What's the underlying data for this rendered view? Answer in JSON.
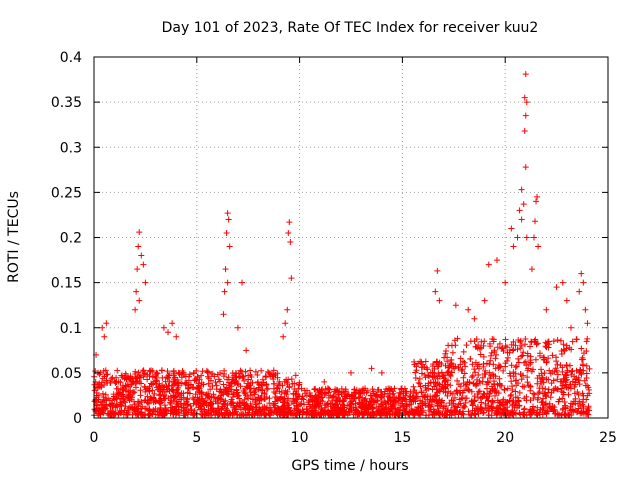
{
  "chart_data": {
    "type": "scatter",
    "title": "Day 101 of 2023, Rate Of TEC Index for receiver kuu2",
    "xlabel": "GPS time / hours",
    "ylabel": "ROTI / TECUs",
    "xlim": [
      0,
      25
    ],
    "ylim": [
      0,
      0.4
    ],
    "xticks": [
      0,
      5,
      10,
      15,
      20,
      25
    ],
    "xtick_labels": [
      "0",
      "5",
      "10",
      "15",
      "20",
      "25"
    ],
    "yticks": [
      0,
      0.05,
      0.1,
      0.15,
      0.2,
      0.25,
      0.3,
      0.35,
      0.4
    ],
    "ytick_labels": [
      "0",
      "0.05",
      "0.1",
      "0.15",
      "0.2",
      "0.25",
      "0.3",
      "0.35",
      "0.4"
    ],
    "grid": true,
    "marker": "+",
    "color": "#ff0000",
    "series": [
      {
        "name": "ROTI",
        "points": [
          [
            0.1,
            0.07
          ],
          [
            0.2,
            0.05
          ],
          [
            0.4,
            0.1
          ],
          [
            0.5,
            0.09
          ],
          [
            0.6,
            0.105
          ],
          [
            2.2,
            0.206
          ],
          [
            2.15,
            0.19
          ],
          [
            2.3,
            0.18
          ],
          [
            2.1,
            0.165
          ],
          [
            2.05,
            0.14
          ],
          [
            2.2,
            0.13
          ],
          [
            2.0,
            0.12
          ],
          [
            2.5,
            0.15
          ],
          [
            2.4,
            0.17
          ],
          [
            3.4,
            0.1
          ],
          [
            3.6,
            0.095
          ],
          [
            3.8,
            0.105
          ],
          [
            4.0,
            0.09
          ],
          [
            6.5,
            0.227
          ],
          [
            6.55,
            0.22
          ],
          [
            6.45,
            0.205
          ],
          [
            6.6,
            0.19
          ],
          [
            6.4,
            0.165
          ],
          [
            6.5,
            0.15
          ],
          [
            6.35,
            0.14
          ],
          [
            6.3,
            0.115
          ],
          [
            7.2,
            0.15
          ],
          [
            7.0,
            0.1
          ],
          [
            7.4,
            0.075
          ],
          [
            9.5,
            0.217
          ],
          [
            9.45,
            0.205
          ],
          [
            9.55,
            0.195
          ],
          [
            9.6,
            0.155
          ],
          [
            9.4,
            0.12
          ],
          [
            9.3,
            0.105
          ],
          [
            9.2,
            0.09
          ],
          [
            11.2,
            0.04
          ],
          [
            12.5,
            0.05
          ],
          [
            13.5,
            0.055
          ],
          [
            14.0,
            0.05
          ],
          [
            16.7,
            0.163
          ],
          [
            16.6,
            0.14
          ],
          [
            16.8,
            0.13
          ],
          [
            17.6,
            0.125
          ],
          [
            18.2,
            0.12
          ],
          [
            18.5,
            0.11
          ],
          [
            19.0,
            0.13
          ],
          [
            19.2,
            0.17
          ],
          [
            19.6,
            0.175
          ],
          [
            20.0,
            0.15
          ],
          [
            20.3,
            0.21
          ],
          [
            20.4,
            0.19
          ],
          [
            20.6,
            0.2
          ],
          [
            20.8,
            0.253
          ],
          [
            20.9,
            0.237
          ],
          [
            20.7,
            0.23
          ],
          [
            20.8,
            0.22
          ],
          [
            21.0,
            0.381
          ],
          [
            20.95,
            0.355
          ],
          [
            21.05,
            0.35
          ],
          [
            21.0,
            0.335
          ],
          [
            20.95,
            0.318
          ],
          [
            21.0,
            0.278
          ],
          [
            21.05,
            0.2
          ],
          [
            21.4,
            0.2
          ],
          [
            21.5,
            0.24
          ],
          [
            21.55,
            0.245
          ],
          [
            21.45,
            0.218
          ],
          [
            21.6,
            0.19
          ],
          [
            21.3,
            0.165
          ],
          [
            22.0,
            0.12
          ],
          [
            22.5,
            0.145
          ],
          [
            22.8,
            0.15
          ],
          [
            23.0,
            0.13
          ],
          [
            23.2,
            0.1
          ],
          [
            23.7,
            0.16
          ],
          [
            23.8,
            0.15
          ],
          [
            23.6,
            0.14
          ],
          [
            23.9,
            0.12
          ],
          [
            24.0,
            0.105
          ]
        ]
      }
    ]
  }
}
